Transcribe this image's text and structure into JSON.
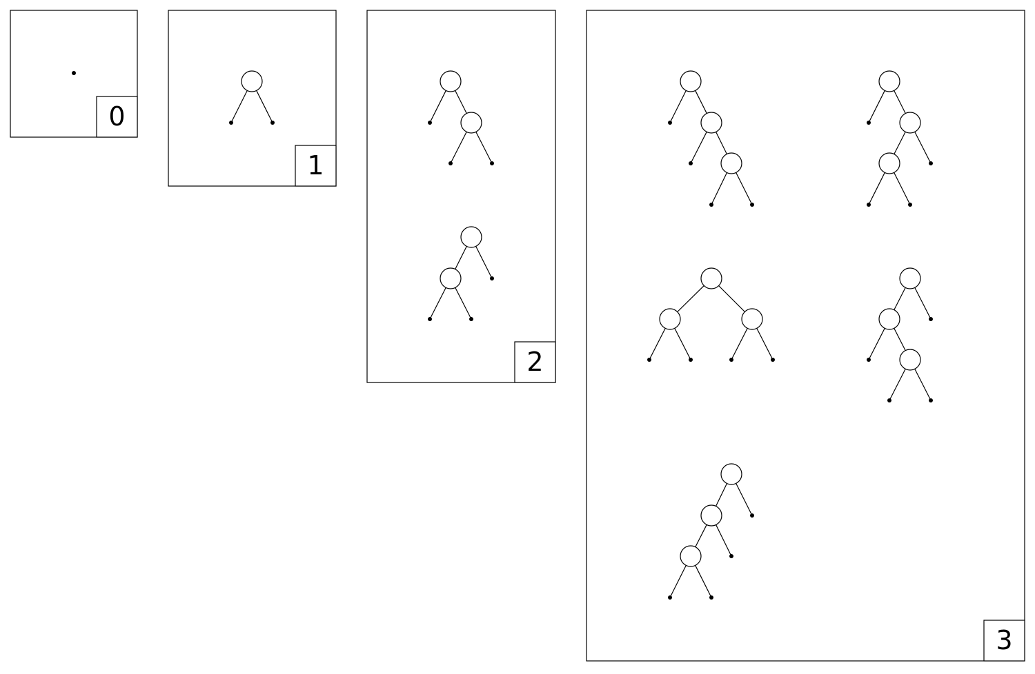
{
  "panels": [
    {
      "label": "0"
    },
    {
      "label": "1"
    },
    {
      "label": "2"
    },
    {
      "label": "3"
    }
  ]
}
